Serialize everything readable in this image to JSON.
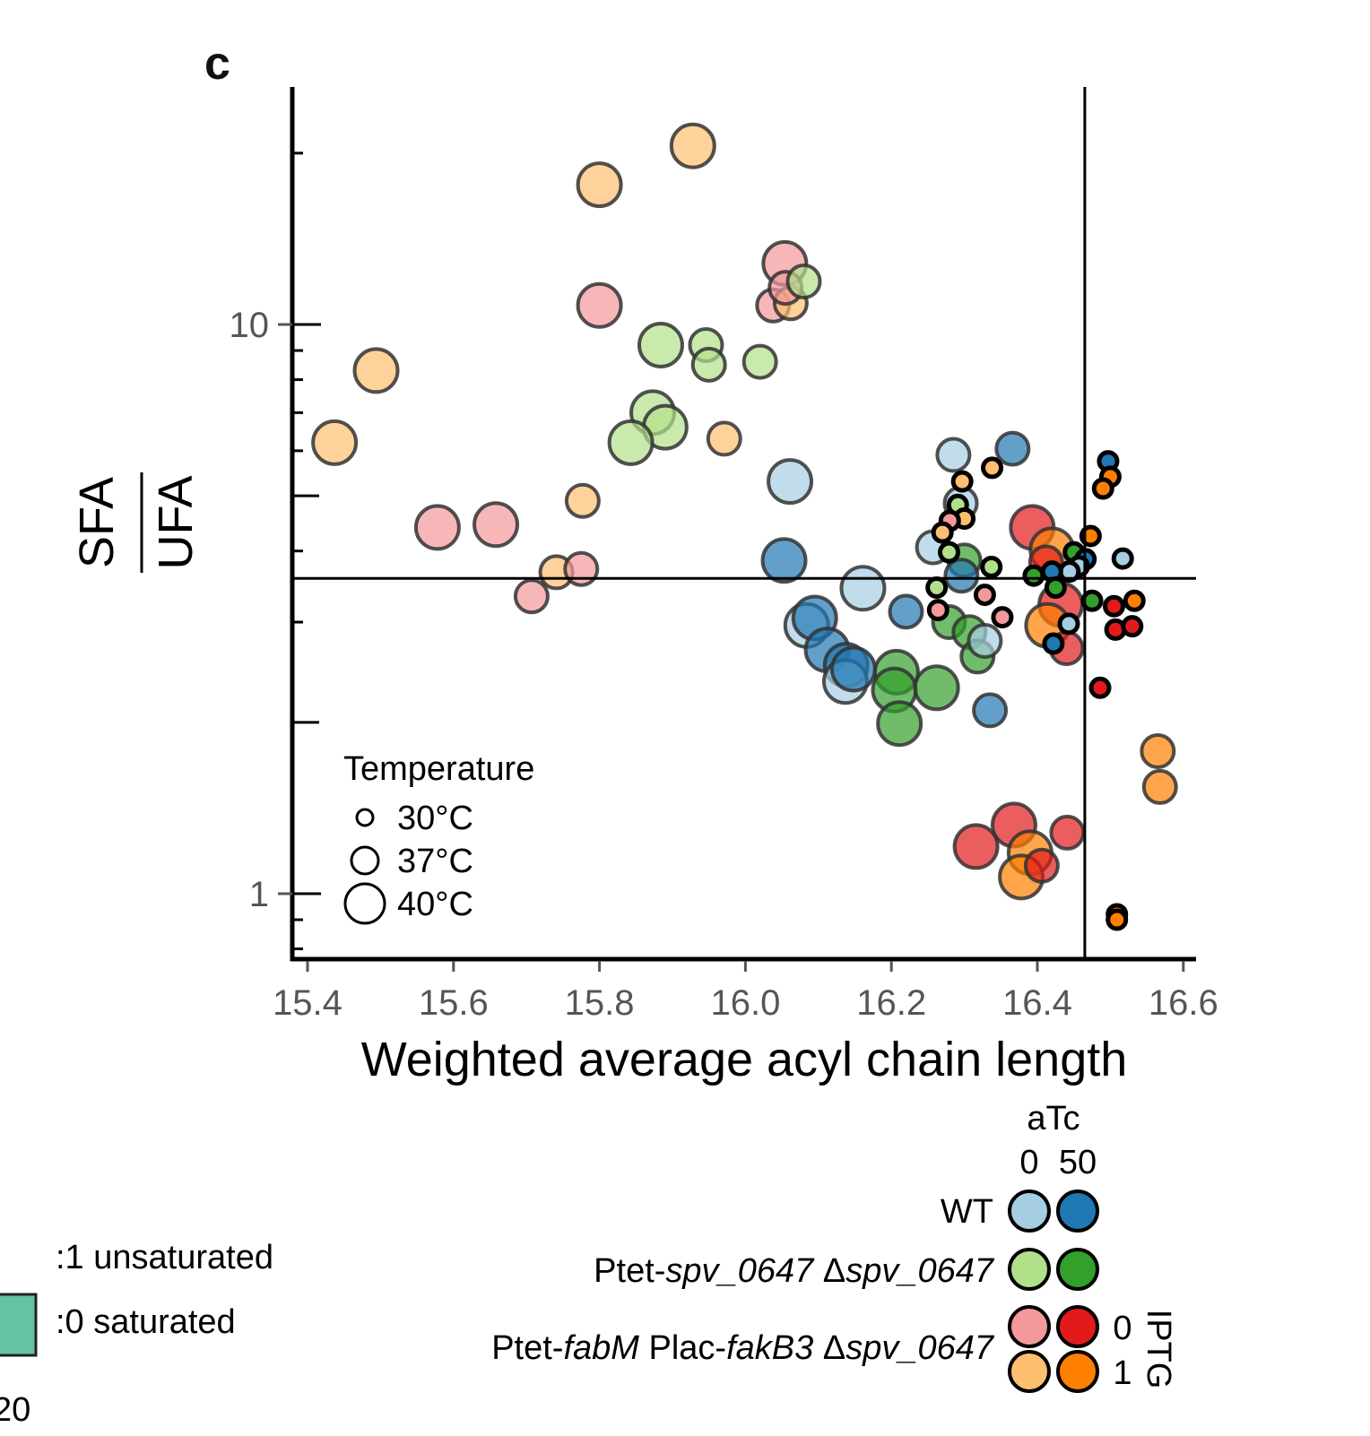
{
  "panel_label": "c",
  "chart_data": {
    "type": "scatter",
    "title": "",
    "xlabel": "Weighted average acyl chain length",
    "ylabel_numerator": "SFA",
    "ylabel_denominator": "UFA",
    "x_scale": "linear",
    "y_scale": "log",
    "xlim": [
      15.38,
      16.62
    ],
    "ylim": [
      0.78,
      26
    ],
    "x_ticks": [
      15.4,
      15.6,
      15.8,
      16.0,
      16.2,
      16.4,
      16.6
    ],
    "x_tick_labels": [
      "15.4",
      "15.6",
      "15.8",
      "16.0",
      "16.2",
      "16.4",
      "16.6"
    ],
    "y_ticks": [
      1,
      10
    ],
    "y_tick_labels": [
      "1",
      "10"
    ],
    "y_minor_ticks": [
      0.8,
      0.9,
      2,
      3,
      4,
      5,
      6,
      7,
      8,
      9,
      20
    ],
    "reference_lines": {
      "vertical_x": 16.465,
      "horizontal_y": 3.58
    },
    "grid": false,
    "temperature_legend": {
      "title": "Temperature",
      "placement": "bottom-left",
      "entries": [
        {
          "label": "30°C",
          "temp": 30
        },
        {
          "label": "37°C",
          "temp": 37
        },
        {
          "label": "40°C",
          "temp": 40
        }
      ]
    },
    "group_legend": {
      "atc_title": "aTc",
      "atc_levels": [
        "0",
        "50"
      ],
      "iptg_title": "IPTG",
      "iptg_levels": [
        "0",
        "1"
      ],
      "rows": [
        {
          "prefix": "WT",
          "parts": [
            {
              "t": "WT",
              "i": false
            }
          ],
          "colors": [
            "#a6cee3",
            "#1f78b4"
          ]
        },
        {
          "parts": [
            {
              "t": "Ptet-",
              "i": false
            },
            {
              "t": "spv_0647",
              "i": true
            },
            {
              "t": " Δ",
              "i": false
            },
            {
              "t": "spv_0647",
              "i": true
            }
          ],
          "colors": [
            "#b2df8a",
            "#33a02c"
          ]
        },
        {
          "parts": [
            {
              "t": "Ptet-",
              "i": false
            },
            {
              "t": "fabM",
              "i": true
            },
            {
              "t": " Plac-",
              "i": false
            },
            {
              "t": "fakB3",
              "i": true
            },
            {
              "t": " Δ",
              "i": false
            },
            {
              "t": "spv_0647",
              "i": true
            }
          ],
          "colors": [
            "#f4999b",
            "#e31a1c"
          ],
          "colors_iptg1": [
            "#fdbf6f",
            "#ff7f00"
          ]
        }
      ]
    },
    "groups": {
      "WT_aTc0": "#a6cee3",
      "WT_aTc50": "#1f78b4",
      "Ptet-spv_aTc0": "#b2df8a",
      "Ptet-spv_aTc50": "#33a02c",
      "fabM_aTc0_IPTG0": "#f4999b",
      "fabM_aTc50_IPTG0": "#e31a1c",
      "fabM_aTc0_IPTG1": "#fdbf6f",
      "fabM_aTc50_IPTG1": "#ff7f00"
    },
    "points": [
      {
        "g": "fabM_aTc0_IPTG1",
        "t": 40,
        "x": 15.928,
        "y": 20.6
      },
      {
        "g": "fabM_aTc0_IPTG1",
        "t": 40,
        "x": 15.8,
        "y": 17.6
      },
      {
        "g": "fabM_aTc0_IPTG0",
        "t": 40,
        "x": 16.054,
        "y": 12.8
      },
      {
        "g": "fabM_aTc0_IPTG0",
        "t": 37,
        "x": 16.038,
        "y": 10.8
      },
      {
        "g": "fabM_aTc0_IPTG1",
        "t": 37,
        "x": 16.062,
        "y": 10.9
      },
      {
        "g": "fabM_aTc0_IPTG0",
        "t": 37,
        "x": 16.055,
        "y": 11.6
      },
      {
        "g": "Ptet-spv_aTc0",
        "t": 37,
        "x": 16.08,
        "y": 11.9
      },
      {
        "g": "fabM_aTc0_IPTG0",
        "t": 40,
        "x": 15.8,
        "y": 10.8
      },
      {
        "g": "fabM_aTc0_IPTG1",
        "t": 40,
        "x": 15.494,
        "y": 8.3
      },
      {
        "g": "fabM_aTc0_IPTG1",
        "t": 40,
        "x": 15.437,
        "y": 6.2
      },
      {
        "g": "Ptet-spv_aTc0",
        "t": 40,
        "x": 15.884,
        "y": 9.2
      },
      {
        "g": "Ptet-spv_aTc0",
        "t": 37,
        "x": 15.946,
        "y": 9.2
      },
      {
        "g": "Ptet-spv_aTc0",
        "t": 37,
        "x": 15.95,
        "y": 8.5
      },
      {
        "g": "Ptet-spv_aTc0",
        "t": 37,
        "x": 16.02,
        "y": 8.6
      },
      {
        "g": "Ptet-spv_aTc0",
        "t": 40,
        "x": 15.873,
        "y": 7.0
      },
      {
        "g": "Ptet-spv_aTc0",
        "t": 40,
        "x": 15.89,
        "y": 6.6
      },
      {
        "g": "Ptet-spv_aTc0",
        "t": 40,
        "x": 15.843,
        "y": 6.2
      },
      {
        "g": "fabM_aTc0_IPTG1",
        "t": 37,
        "x": 15.971,
        "y": 6.3
      },
      {
        "g": "WT_aTc0",
        "t": 40,
        "x": 16.061,
        "y": 5.3
      },
      {
        "g": "fabM_aTc0_IPTG1",
        "t": 37,
        "x": 15.777,
        "y": 4.9
      },
      {
        "g": "fabM_aTc0_IPTG0",
        "t": 40,
        "x": 15.578,
        "y": 4.4
      },
      {
        "g": "fabM_aTc0_IPTG0",
        "t": 40,
        "x": 15.658,
        "y": 4.45
      },
      {
        "g": "fabM_aTc0_IPTG1",
        "t": 37,
        "x": 15.741,
        "y": 3.67
      },
      {
        "g": "fabM_aTc0_IPTG0",
        "t": 37,
        "x": 15.775,
        "y": 3.72
      },
      {
        "g": "fabM_aTc0_IPTG0",
        "t": 37,
        "x": 15.707,
        "y": 3.33
      },
      {
        "g": "WT_aTc50",
        "t": 40,
        "x": 16.053,
        "y": 3.85
      },
      {
        "g": "WT_aTc0",
        "t": 40,
        "x": 16.161,
        "y": 3.44
      },
      {
        "g": "WT_aTc0",
        "t": 40,
        "x": 16.084,
        "y": 2.96
      },
      {
        "g": "WT_aTc50",
        "t": 40,
        "x": 16.095,
        "y": 3.05
      },
      {
        "g": "WT_aTc50",
        "t": 40,
        "x": 16.112,
        "y": 2.68
      },
      {
        "g": "WT_aTc50",
        "t": 40,
        "x": 16.138,
        "y": 2.52
      },
      {
        "g": "WT_aTc0",
        "t": 40,
        "x": 16.137,
        "y": 2.36
      },
      {
        "g": "WT_aTc50",
        "t": 40,
        "x": 16.148,
        "y": 2.48
      },
      {
        "g": "WT_aTc50",
        "t": 37,
        "x": 16.22,
        "y": 3.13
      },
      {
        "g": "Ptet-spv_aTc50",
        "t": 40,
        "x": 16.207,
        "y": 2.45
      },
      {
        "g": "Ptet-spv_aTc50",
        "t": 40,
        "x": 16.204,
        "y": 2.28
      },
      {
        "g": "Ptet-spv_aTc50",
        "t": 40,
        "x": 16.262,
        "y": 2.3
      },
      {
        "g": "Ptet-spv_aTc50",
        "t": 40,
        "x": 16.211,
        "y": 1.99
      },
      {
        "g": "Ptet-spv_aTc50",
        "t": 37,
        "x": 16.279,
        "y": 3.0
      },
      {
        "g": "Ptet-spv_aTc50",
        "t": 37,
        "x": 16.307,
        "y": 2.88
      },
      {
        "g": "Ptet-spv_aTc50",
        "t": 37,
        "x": 16.318,
        "y": 2.61
      },
      {
        "g": "WT_aTc0",
        "t": 37,
        "x": 16.328,
        "y": 2.78
      },
      {
        "g": "WT_aTc50",
        "t": 37,
        "x": 16.335,
        "y": 2.1
      },
      {
        "g": "WT_aTc0",
        "t": 37,
        "x": 16.285,
        "y": 5.9
      },
      {
        "g": "WT_aTc50",
        "t": 37,
        "x": 16.366,
        "y": 6.05
      },
      {
        "g": "WT_aTc0",
        "t": 37,
        "x": 16.295,
        "y": 4.85
      },
      {
        "g": "WT_aTc0",
        "t": 37,
        "x": 16.257,
        "y": 4.06
      },
      {
        "g": "Ptet-spv_aTc50",
        "t": 37,
        "x": 16.3,
        "y": 3.85
      },
      {
        "g": "WT_aTc50",
        "t": 37,
        "x": 16.296,
        "y": 3.62
      },
      {
        "g": "fabM_aTc0_IPTG1",
        "t": 30,
        "x": 16.297,
        "y": 5.3
      },
      {
        "g": "fabM_aTc0_IPTG1",
        "t": 30,
        "x": 16.338,
        "y": 5.6
      },
      {
        "g": "Ptet-spv_aTc0",
        "t": 30,
        "x": 16.291,
        "y": 4.82
      },
      {
        "g": "fabM_aTc0_IPTG1",
        "t": 30,
        "x": 16.3,
        "y": 4.56
      },
      {
        "g": "fabM_aTc0_IPTG0",
        "t": 30,
        "x": 16.28,
        "y": 4.52
      },
      {
        "g": "fabM_aTc0_IPTG1",
        "t": 30,
        "x": 16.27,
        "y": 4.31
      },
      {
        "g": "Ptet-spv_aTc0",
        "t": 30,
        "x": 16.279,
        "y": 3.98
      },
      {
        "g": "Ptet-spv_aTc0",
        "t": 30,
        "x": 16.337,
        "y": 3.75
      },
      {
        "g": "Ptet-spv_aTc0",
        "t": 30,
        "x": 16.262,
        "y": 3.45
      },
      {
        "g": "fabM_aTc0_IPTG0",
        "t": 30,
        "x": 16.328,
        "y": 3.35
      },
      {
        "g": "fabM_aTc0_IPTG0",
        "t": 30,
        "x": 16.264,
        "y": 3.15
      },
      {
        "g": "fabM_aTc0_IPTG0",
        "t": 30,
        "x": 16.352,
        "y": 3.06
      },
      {
        "g": "fabM_aTc50_IPTG0",
        "t": 40,
        "x": 16.393,
        "y": 4.4
      },
      {
        "g": "fabM_aTc50_IPTG1",
        "t": 40,
        "x": 16.42,
        "y": 4.02
      },
      {
        "g": "fabM_aTc50_IPTG0",
        "t": 37,
        "x": 16.412,
        "y": 3.82
      },
      {
        "g": "fabM_aTc50_IPTG0",
        "t": 40,
        "x": 16.432,
        "y": 3.22
      },
      {
        "g": "fabM_aTc50_IPTG1",
        "t": 40,
        "x": 16.414,
        "y": 2.96
      },
      {
        "g": "fabM_aTc50_IPTG0",
        "t": 37,
        "x": 16.44,
        "y": 2.7
      },
      {
        "g": "fabM_aTc50_IPTG1",
        "t": 30,
        "x": 16.473,
        "y": 4.25
      },
      {
        "g": "Ptet-spv_aTc50",
        "t": 30,
        "x": 16.45,
        "y": 3.98
      },
      {
        "g": "WT_aTc50",
        "t": 30,
        "x": 16.466,
        "y": 3.87
      },
      {
        "g": "WT_aTc0",
        "t": 30,
        "x": 16.457,
        "y": 3.76
      },
      {
        "g": "WT_aTc0",
        "t": 30,
        "x": 16.444,
        "y": 3.68
      },
      {
        "g": "WT_aTc50",
        "t": 30,
        "x": 16.42,
        "y": 3.68
      },
      {
        "g": "Ptet-spv_aTc50",
        "t": 30,
        "x": 16.395,
        "y": 3.62
      },
      {
        "g": "Ptet-spv_aTc50",
        "t": 30,
        "x": 16.425,
        "y": 3.45
      },
      {
        "g": "WT_aTc0",
        "t": 30,
        "x": 16.517,
        "y": 3.88
      },
      {
        "g": "Ptet-spv_aTc50",
        "t": 30,
        "x": 16.475,
        "y": 3.27
      },
      {
        "g": "fabM_aTc50_IPTG0",
        "t": 30,
        "x": 16.505,
        "y": 3.2
      },
      {
        "g": "fabM_aTc50_IPTG1",
        "t": 30,
        "x": 16.533,
        "y": 3.27
      },
      {
        "g": "fabM_aTc50_IPTG0",
        "t": 30,
        "x": 16.507,
        "y": 2.91
      },
      {
        "g": "fabM_aTc50_IPTG0",
        "t": 30,
        "x": 16.53,
        "y": 2.95
      },
      {
        "g": "WT_aTc0",
        "t": 30,
        "x": 16.443,
        "y": 2.98
      },
      {
        "g": "WT_aTc50",
        "t": 30,
        "x": 16.422,
        "y": 2.75
      },
      {
        "g": "fabM_aTc50_IPTG0",
        "t": 30,
        "x": 16.486,
        "y": 2.3
      },
      {
        "g": "WT_aTc50",
        "t": 30,
        "x": 16.497,
        "y": 5.75
      },
      {
        "g": "fabM_aTc50_IPTG1",
        "t": 30,
        "x": 16.5,
        "y": 5.4
      },
      {
        "g": "fabM_aTc50_IPTG1",
        "t": 30,
        "x": 16.49,
        "y": 5.15
      },
      {
        "g": "fabM_aTc50_IPTG1",
        "t": 37,
        "x": 16.565,
        "y": 1.78
      },
      {
        "g": "fabM_aTc50_IPTG1",
        "t": 37,
        "x": 16.568,
        "y": 1.54
      },
      {
        "g": "fabM_aTc50_IPTG0",
        "t": 40,
        "x": 16.368,
        "y": 1.32
      },
      {
        "g": "fabM_aTc50_IPTG0",
        "t": 40,
        "x": 16.316,
        "y": 1.21
      },
      {
        "g": "fabM_aTc50_IPTG0",
        "t": 37,
        "x": 16.441,
        "y": 1.28
      },
      {
        "g": "fabM_aTc50_IPTG1",
        "t": 40,
        "x": 16.39,
        "y": 1.18
      },
      {
        "g": "fabM_aTc50_IPTG1",
        "t": 40,
        "x": 16.378,
        "y": 1.07
      },
      {
        "g": "fabM_aTc50_IPTG0",
        "t": 37,
        "x": 16.406,
        "y": 1.12
      },
      {
        "g": "fabM_aTc50_IPTG1",
        "t": 30,
        "x": 16.509,
        "y": 0.92
      },
      {
        "g": "fabM_aTc50_IPTG1",
        "t": 30,
        "x": 16.509,
        "y": 0.9
      }
    ]
  },
  "partial_legend": {
    "unsaturated_label": ":1 unsaturated",
    "saturated_label": ":0 saturated",
    "swatch_color": "#66c2a5",
    "axis_fragment": "20"
  }
}
